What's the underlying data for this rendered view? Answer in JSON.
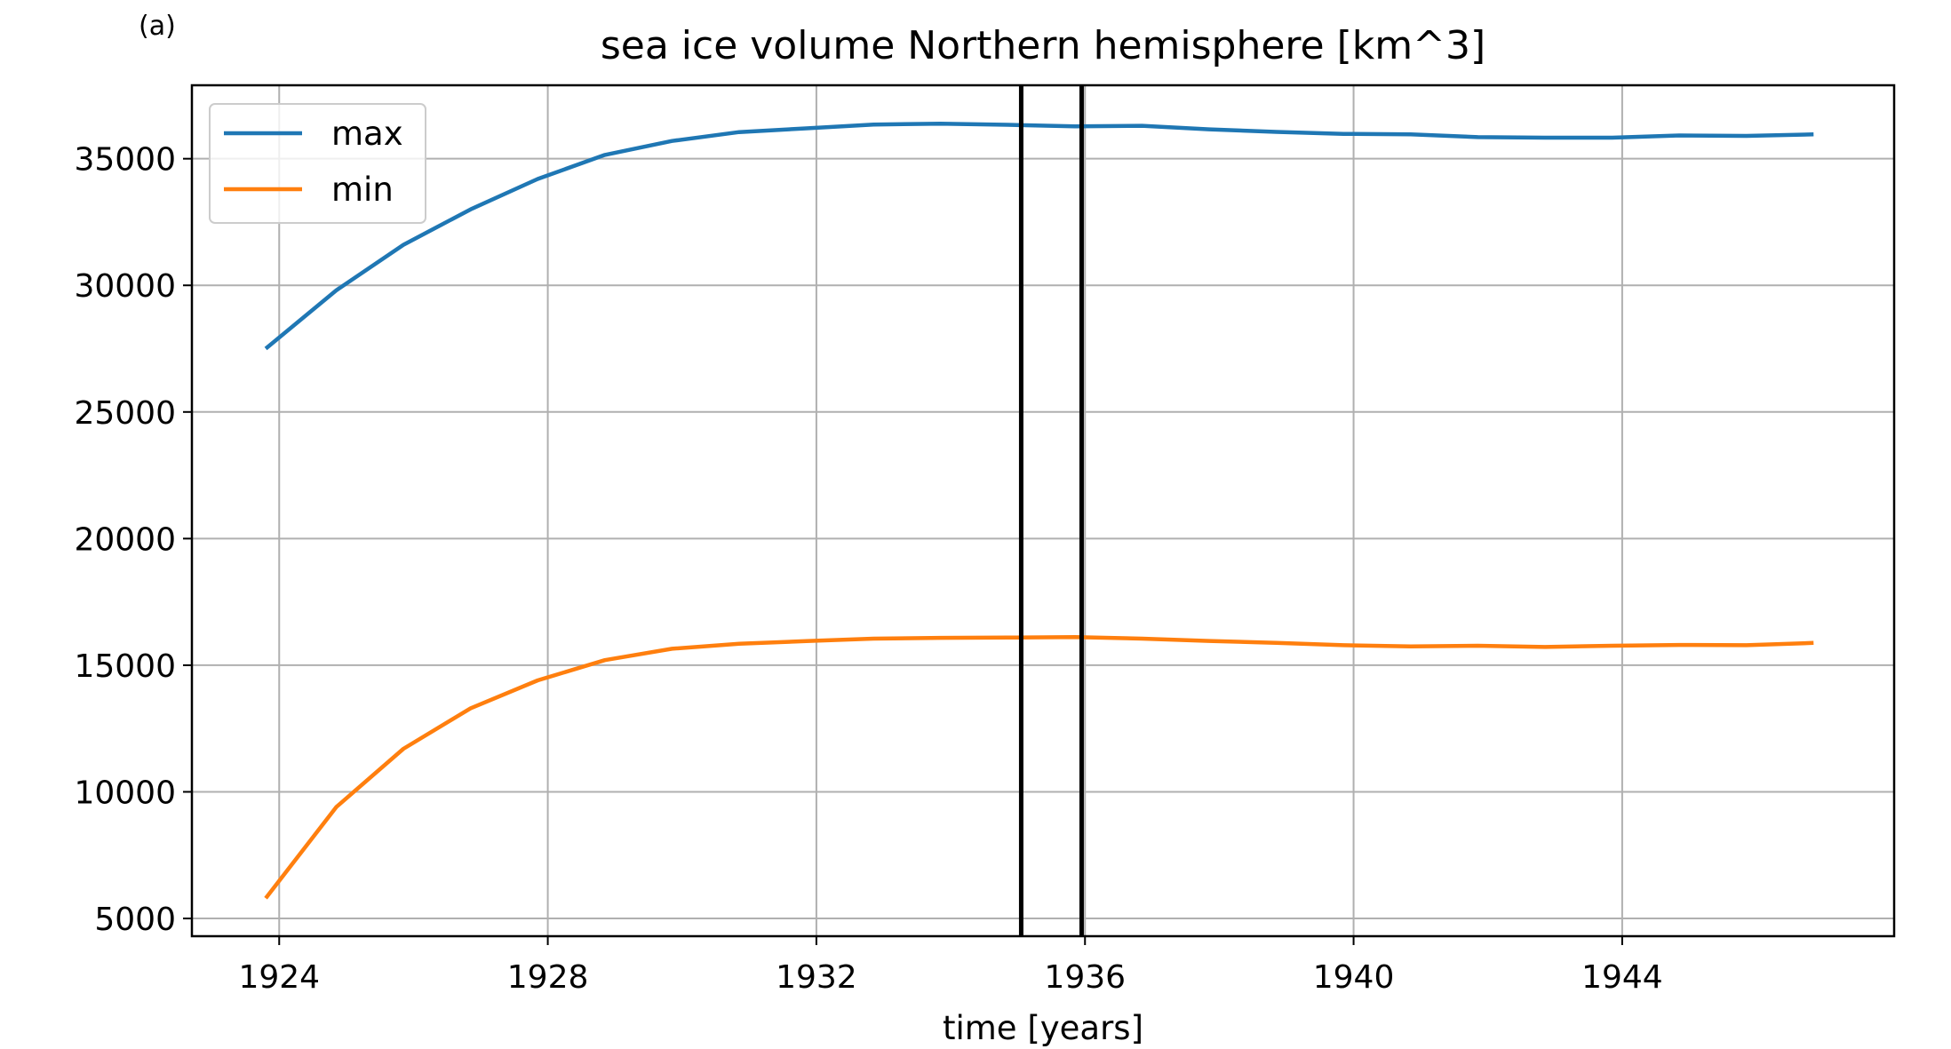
{
  "panel_label": "(a)",
  "chart_data": {
    "type": "line",
    "title": "sea ice volume Northern hemisphere [km^3]",
    "xlabel": "time [years]",
    "ylabel": "",
    "xlim": [
      1922.7,
      1948.05
    ],
    "ylim": [
      4300,
      37900
    ],
    "xticks": [
      1924,
      1928,
      1932,
      1936,
      1940,
      1944
    ],
    "yticks": [
      5000,
      10000,
      15000,
      20000,
      25000,
      30000,
      35000
    ],
    "grid": true,
    "legend_position": "top-left",
    "vlines": [
      1935.05,
      1935.95
    ],
    "x": [
      1923.8,
      1924.85,
      1925.85,
      1926.85,
      1927.85,
      1928.85,
      1929.85,
      1930.85,
      1931.85,
      1932.85,
      1933.85,
      1934.85,
      1935.85,
      1936.85,
      1937.85,
      1938.85,
      1939.85,
      1940.85,
      1941.85,
      1942.85,
      1943.85,
      1944.85,
      1945.85,
      1946.85
    ],
    "series": [
      {
        "name": "max",
        "color": "#1f77b4",
        "values": [
          27500,
          29800,
          31600,
          33000,
          34200,
          35150,
          35700,
          36050,
          36200,
          36350,
          36380,
          36340,
          36280,
          36300,
          36160,
          36060,
          35980,
          35960,
          35850,
          35830,
          35830,
          35920,
          35900,
          35960
        ]
      },
      {
        "name": "min",
        "color": "#ff7f0e",
        "values": [
          5800,
          9400,
          11700,
          13300,
          14400,
          15200,
          15650,
          15850,
          15950,
          16050,
          16080,
          16090,
          16110,
          16050,
          15960,
          15880,
          15790,
          15740,
          15770,
          15720,
          15770,
          15800,
          15790,
          15880
        ]
      }
    ]
  }
}
